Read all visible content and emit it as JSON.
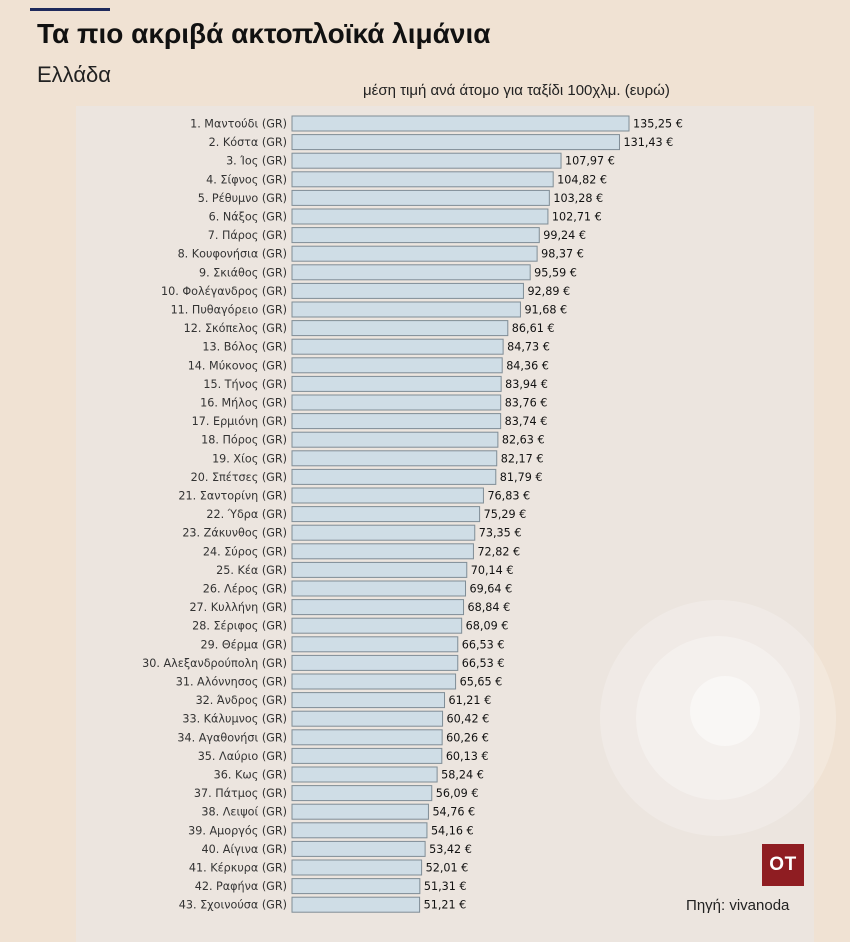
{
  "header": {
    "title": "Τα πιο ακριβά ακτοπλοϊκά λιμάνια",
    "subtitle": "Ελλάδα",
    "measure_label": "μέση τιμή ανά άτομο για ταξίδι 100χλμ. (ευρώ)"
  },
  "footer": {
    "logo_text": "OT",
    "source": "Πηγή: vivanoda"
  },
  "colors": {
    "background": "#f0e2d3",
    "panel": "#ece5df",
    "bar_fill": "#cfdde6",
    "bar_stroke": "#7f8d96",
    "logo": "#8f1d22"
  },
  "chart_data": {
    "type": "bar",
    "orientation": "horizontal",
    "title": "",
    "xlabel": "",
    "ylabel": "",
    "xlim": [
      0,
      135.25
    ],
    "grid": false,
    "value_suffix": " €",
    "categories": [
      "1. Μαντούδι (GR)",
      "2. Κόστα (GR)",
      "3. Ίος (GR)",
      "4. Σίφνος (GR)",
      "5. Ρέθυμνο (GR)",
      "6. Νάξος (GR)",
      "7. Πάρος (GR)",
      "8. Κουφονήσια (GR)",
      "9. Σκιάθος (GR)",
      "10. Φολέγανδρος (GR)",
      "11. Πυθαγόρειο (GR)",
      "12. Σκόπελος (GR)",
      "13. Βόλος (GR)",
      "14. Μύκονος (GR)",
      "15. Τήνος (GR)",
      "16. Μήλος (GR)",
      "17. Ερμιόνη (GR)",
      "18. Πόρος (GR)",
      "19. Χίος (GR)",
      "20. Σπέτσες (GR)",
      "21. Σαντορίνη (GR)",
      "22. Ύδρα (GR)",
      "23. Ζάκυνθος (GR)",
      "24. Σύρος (GR)",
      "25. Κέα (GR)",
      "26. Λέρος (GR)",
      "27. Κυλλήνη (GR)",
      "28. Σέριφος (GR)",
      "29. Θέρμα (GR)",
      "30. Αλεξανδρούπολη (GR)",
      "31. Αλόννησος (GR)",
      "32. Άνδρος (GR)",
      "33. Κάλυμνος (GR)",
      "34. Αγαθονήσι (GR)",
      "35. Λαύριο (GR)",
      "36. Κως (GR)",
      "37. Πάτμος (GR)",
      "38. Λειψοί (GR)",
      "39. Αμοργός (GR)",
      "40. Αίγινα (GR)",
      "41. Κέρκυρα (GR)",
      "42. Ραφήνα (GR)",
      "43. Σχοινούσα (GR)"
    ],
    "values": [
      135.25,
      131.43,
      107.97,
      104.82,
      103.28,
      102.71,
      99.24,
      98.37,
      95.59,
      92.89,
      91.68,
      86.61,
      84.73,
      84.36,
      83.94,
      83.76,
      83.74,
      82.63,
      82.17,
      81.79,
      76.83,
      75.29,
      73.35,
      72.82,
      70.14,
      69.64,
      68.84,
      68.09,
      66.53,
      66.53,
      65.65,
      61.21,
      60.42,
      60.26,
      60.13,
      58.24,
      56.09,
      54.76,
      54.16,
      53.42,
      52.01,
      51.31,
      51.21
    ],
    "value_labels": [
      "135,25 €",
      "131,43 €",
      "107,97 €",
      "104,82 €",
      "103,28 €",
      "102,71 €",
      "99,24 €",
      "98,37 €",
      "95,59 €",
      "92,89 €",
      "91,68 €",
      "86,61 €",
      "84,73 €",
      "84,36 €",
      "83,94 €",
      "83,76 €",
      "83,74 €",
      "82,63 €",
      "82,17 €",
      "81,79 €",
      "76,83 €",
      "75,29 €",
      "73,35 €",
      "72,82 €",
      "70,14 €",
      "69,64 €",
      "68,84 €",
      "68,09 €",
      "66,53 €",
      "66,53 €",
      "65,65 €",
      "61,21 €",
      "60,42 €",
      "60,26 €",
      "60,13 €",
      "58,24 €",
      "56,09 €",
      "54,76 €",
      "54,16 €",
      "53,42 €",
      "52,01 €",
      "51,31 €",
      "51,21 €"
    ]
  }
}
